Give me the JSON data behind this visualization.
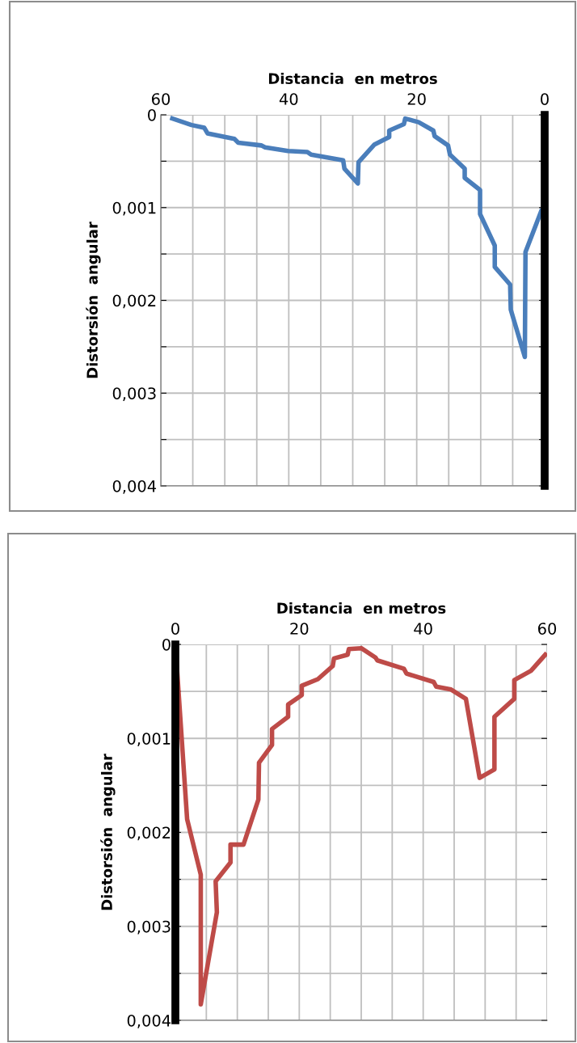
{
  "chart_data": [
    {
      "type": "line",
      "xlabel": "Distancia  en metros",
      "ylabel": "Distorsión  angular",
      "xlim": [
        60,
        0
      ],
      "ylim": [
        0.004,
        0
      ],
      "xticks": [
        {
          "value": 60,
          "label": "60"
        },
        {
          "value": 55,
          "label": null
        },
        {
          "value": 50,
          "label": null
        },
        {
          "value": 45,
          "label": null
        },
        {
          "value": 40,
          "label": "40"
        },
        {
          "value": 35,
          "label": null
        },
        {
          "value": 30,
          "label": null
        },
        {
          "value": 25,
          "label": null
        },
        {
          "value": 20,
          "label": "20"
        },
        {
          "value": 15,
          "label": null
        },
        {
          "value": 10,
          "label": null
        },
        {
          "value": 5,
          "label": null
        },
        {
          "value": 0,
          "label": "0"
        }
      ],
      "yticks": [
        {
          "value": 0,
          "label": "0"
        },
        {
          "value": 0.0005,
          "label": null
        },
        {
          "value": 0.001,
          "label": "0,001"
        },
        {
          "value": 0.0015,
          "label": null
        },
        {
          "value": 0.002,
          "label": "0,002"
        },
        {
          "value": 0.0025,
          "label": null
        },
        {
          "value": 0.003,
          "label": "0,003"
        },
        {
          "value": 0.0035,
          "label": null
        },
        {
          "value": 0.004,
          "label": "0,004"
        }
      ],
      "grid": true,
      "series": [
        {
          "color": "#4a7ebb",
          "x": [
            58.2,
            55.2,
            53.2,
            52.7,
            48.5,
            47.9,
            44.3,
            43.7,
            40.1,
            37.1,
            36.5,
            31.5,
            31.3,
            29.2,
            29.1,
            26.6,
            24.3,
            24.3,
            22.0,
            21.8,
            19.7,
            17.4,
            17.2,
            15.1,
            14.8,
            12.5,
            12.5,
            10.1,
            10.1,
            7.8,
            7.8,
            5.4,
            5.3,
            3.1,
            3.0,
            0.5,
            0
          ],
          "values": [
            4e-05,
            0.00011,
            0.00014,
            0.0002,
            0.00026,
            0.0003,
            0.00033,
            0.00035,
            0.00039,
            0.0004,
            0.00043,
            0.00049,
            0.00058,
            0.00074,
            0.00051,
            0.00032,
            0.00024,
            0.00017,
            0.0001,
            4e-05,
            8e-05,
            0.00017,
            0.00023,
            0.00033,
            0.00043,
            0.00058,
            0.00068,
            0.00081,
            0.00107,
            0.00141,
            0.00164,
            0.00183,
            0.0021,
            0.00261,
            0.00148,
            0.00103,
            0.001
          ]
        }
      ]
    },
    {
      "type": "line",
      "xlabel": "Distancia  en metros",
      "ylabel": "Distorsión  angular",
      "xlim": [
        0,
        60
      ],
      "ylim": [
        0.004,
        0
      ],
      "xticks": [
        {
          "value": 0,
          "label": "0"
        },
        {
          "value": 5,
          "label": null
        },
        {
          "value": 10,
          "label": null
        },
        {
          "value": 15,
          "label": null
        },
        {
          "value": 20,
          "label": "20"
        },
        {
          "value": 25,
          "label": null
        },
        {
          "value": 30,
          "label": null
        },
        {
          "value": 35,
          "label": null
        },
        {
          "value": 40,
          "label": "40"
        },
        {
          "value": 45,
          "label": null
        },
        {
          "value": 50,
          "label": null
        },
        {
          "value": 55,
          "label": null
        },
        {
          "value": 60,
          "label": "60"
        }
      ],
      "yticks": [
        {
          "value": 0,
          "label": "0"
        },
        {
          "value": 0.0005,
          "label": null
        },
        {
          "value": 0.001,
          "label": "0,001"
        },
        {
          "value": 0.0015,
          "label": null
        },
        {
          "value": 0.002,
          "label": "0,002"
        },
        {
          "value": 0.0025,
          "label": null
        },
        {
          "value": 0.003,
          "label": "0,003"
        },
        {
          "value": 0.0035,
          "label": null
        },
        {
          "value": 0.004,
          "label": "0,004"
        }
      ],
      "grid": true,
      "series": [
        {
          "color": "#be4b48",
          "x": [
            0,
            1.9,
            4.1,
            4.1,
            6.7,
            6.5,
            8.9,
            8.9,
            11.0,
            13.4,
            13.5,
            15.6,
            15.6,
            18.2,
            18.2,
            20.4,
            20.4,
            23.0,
            25.4,
            25.6,
            27.8,
            28.0,
            30.0,
            32.3,
            32.6,
            36.9,
            37.3,
            41.7,
            42.1,
            44.5,
            46.9,
            49.1,
            51.5,
            51.5,
            54.7,
            54.7,
            57.4,
            59.7
          ],
          "values": [
            0,
            0.00186,
            0.00245,
            0.00383,
            0.00285,
            0.00252,
            0.00232,
            0.00213,
            0.00213,
            0.00165,
            0.00126,
            0.00107,
            0.0009,
            0.00077,
            0.00064,
            0.00054,
            0.00044,
            0.00037,
            0.00023,
            0.00015,
            0.00011,
            5e-05,
            4e-05,
            0.00014,
            0.00017,
            0.00026,
            0.00031,
            0.0004,
            0.00045,
            0.00048,
            0.00058,
            0.00142,
            0.00133,
            0.00077,
            0.00058,
            0.00038,
            0.00028,
            0.00011
          ]
        }
      ]
    }
  ]
}
